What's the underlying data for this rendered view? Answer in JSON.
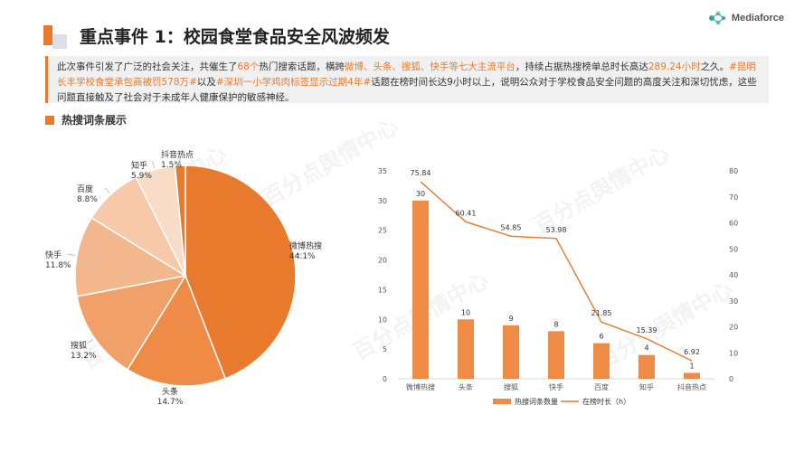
{
  "header": {
    "title": "重点事件 1：校园食堂食品安全风波频发",
    "logo_text": "Mediaforce"
  },
  "intro": {
    "p1": "此次事件引发了广泛的社会关注，共催生了",
    "p1_hl": "68个",
    "p2": "热门搜索话题，横跨",
    "p2_hl": "微博、头条、搜狐、快手等七大主流平台",
    "p3": "，持续占据热搜榜单总时长高达",
    "p3_hl": "289.24小时",
    "p4": "之久。",
    "p4_hl": "#昆明长丰学校食堂承包商被罚578万#",
    "p5": "以及",
    "p5_hl": "#深圳一小学鸡肉标签显示过期4年#",
    "p6": "话题在榜时间长达9小时以上，说明公众对于学校食品安全问题的高度关注和深切忧虑，这些问题直接触及了社会对于未成年人健康保护的敏感神经。"
  },
  "section": {
    "label": "热搜词条展示"
  },
  "watermark": "百分点舆情中心",
  "chart_data": [
    {
      "type": "pie",
      "categories": [
        "微博热搜",
        "头条",
        "搜狐",
        "快手",
        "百度",
        "知乎",
        "抖音热点"
      ],
      "values": [
        44.1,
        14.7,
        13.2,
        11.8,
        8.8,
        5.9,
        1.5
      ],
      "value_labels": [
        "44.1%",
        "14.7%",
        "13.2%",
        "11.8%",
        "8.8%",
        "5.9%",
        "1.5%"
      ],
      "colors": [
        "#e87a2e",
        "#ee8c47",
        "#f0a068",
        "#f3b78d",
        "#f6c9a8",
        "#f9dcc7",
        "#e87a2e"
      ]
    },
    {
      "type": "bar",
      "categories": [
        "微博热搜",
        "头条",
        "搜狐",
        "快手",
        "百度",
        "知乎",
        "抖音热点"
      ],
      "series": [
        {
          "name": "热搜词条数量",
          "type": "bar",
          "axis": "left",
          "color": "#ee8c47",
          "values": [
            30,
            10,
            9,
            8,
            6,
            4,
            1
          ],
          "labels": [
            "30",
            "10",
            "9",
            "8",
            "6",
            "4",
            "1"
          ]
        },
        {
          "name": "在榜时长（h）",
          "type": "line",
          "axis": "right",
          "color": "#e87a2e",
          "values": [
            75.84,
            60.41,
            54.85,
            53.98,
            21.85,
            15.39,
            6.92
          ],
          "labels": [
            "75.84",
            "60.41",
            "54.85",
            "53.98",
            "21.85",
            "15.39",
            "6.92"
          ]
        }
      ],
      "ylim_left": [
        0,
        35
      ],
      "yticks_left": [
        "0",
        "5",
        "10",
        "15",
        "20",
        "25",
        "30",
        "35"
      ],
      "ylim_right": [
        0,
        80
      ],
      "yticks_right": [
        "0",
        "10",
        "20",
        "30",
        "40",
        "50",
        "60",
        "70",
        "80"
      ],
      "grid": false,
      "legend_position": "bottom"
    }
  ]
}
